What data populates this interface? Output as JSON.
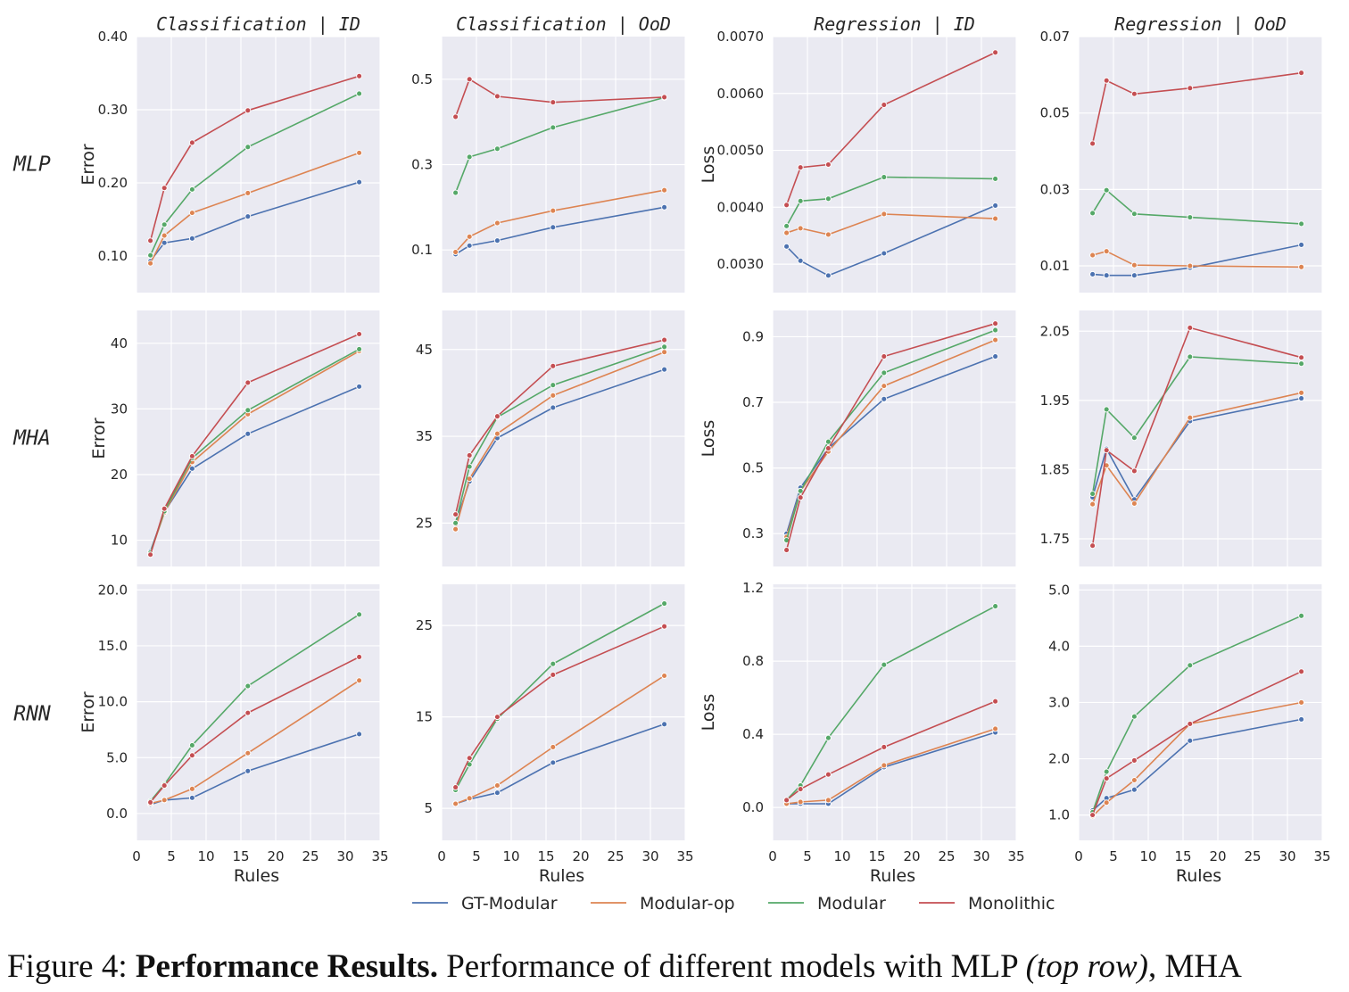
{
  "chart_data": {
    "type": "line",
    "x": [
      2,
      4,
      8,
      16,
      32
    ],
    "series_names": [
      "GT-Modular",
      "Modular-op",
      "Modular",
      "Monolithic"
    ],
    "colors": {
      "GT-Modular": "#4c72b0",
      "Modular-op": "#dd8452",
      "Modular": "#55a868",
      "Monolithic": "#c44e52"
    },
    "background": "#eaeaf2",
    "grid": true,
    "legend_position": "bottom-center",
    "col_titles": [
      "Classification | ID",
      "Classification | OoD",
      "Regression | ID",
      "Regression | OoD"
    ],
    "row_titles": [
      "MLP",
      "MHA",
      "RNN"
    ],
    "xlabel": "Rules",
    "xlim": [
      0,
      35
    ],
    "xticks": [
      "0",
      "5",
      "10",
      "15",
      "20",
      "25",
      "30",
      "35"
    ],
    "panels": [
      [
        {
          "ylabel": "Error",
          "ylim": [
            0.05,
            0.4
          ],
          "yticks": [
            [
              0.1,
              "0.10"
            ],
            [
              0.2,
              "0.20"
            ],
            [
              0.3,
              "0.30"
            ],
            [
              0.4,
              "0.40"
            ]
          ],
          "series": {
            "GT-Modular": [
              0.093,
              0.118,
              0.124,
              0.154,
              0.201
            ],
            "Modular-op": [
              0.09,
              0.128,
              0.159,
              0.186,
              0.241
            ],
            "Modular": [
              0.101,
              0.143,
              0.191,
              0.249,
              0.322
            ],
            "Monolithic": [
              0.121,
              0.193,
              0.255,
              0.299,
              0.346
            ]
          }
        },
        {
          "ylabel": "",
          "ylim": [
            0.0,
            0.6
          ],
          "yticks": [
            [
              0.1,
              "0.1"
            ],
            [
              0.3,
              "0.3"
            ],
            [
              0.5,
              "0.5"
            ]
          ],
          "series": {
            "GT-Modular": [
              0.09,
              0.11,
              0.122,
              0.153,
              0.2
            ],
            "Modular-op": [
              0.095,
              0.131,
              0.163,
              0.192,
              0.24
            ],
            "Modular": [
              0.234,
              0.318,
              0.337,
              0.387,
              0.457
            ],
            "Monolithic": [
              0.412,
              0.5,
              0.46,
              0.446,
              0.458
            ]
          }
        },
        {
          "ylabel": "Loss",
          "ylim": [
            0.0025,
            0.007
          ],
          "yticks": [
            [
              0.003,
              "0.0030"
            ],
            [
              0.004,
              "0.0040"
            ],
            [
              0.005,
              "0.0050"
            ],
            [
              0.006,
              "0.0060"
            ],
            [
              0.007,
              "0.0070"
            ]
          ],
          "series": {
            "GT-Modular": [
              0.00331,
              0.00306,
              0.0028,
              0.00319,
              0.00403
            ],
            "Modular-op": [
              0.00355,
              0.00363,
              0.00352,
              0.00388,
              0.0038
            ],
            "Modular": [
              0.00367,
              0.00411,
              0.00415,
              0.00453,
              0.0045
            ],
            "Monolithic": [
              0.00404,
              0.0047,
              0.00475,
              0.0058,
              0.00672
            ]
          }
        },
        {
          "ylabel": "",
          "ylim": [
            0.003,
            0.07
          ],
          "yticks": [
            [
              0.01,
              "0.01"
            ],
            [
              0.03,
              "0.03"
            ],
            [
              0.05,
              "0.05"
            ],
            [
              0.07,
              "0.07"
            ]
          ],
          "series": {
            "GT-Modular": [
              0.0078,
              0.0075,
              0.0075,
              0.0095,
              0.0155
            ],
            "Modular-op": [
              0.0128,
              0.0138,
              0.0102,
              0.01,
              0.0097
            ],
            "Modular": [
              0.0238,
              0.0298,
              0.0236,
              0.0227,
              0.021
            ],
            "Monolithic": [
              0.042,
              0.0585,
              0.055,
              0.0565,
              0.0605
            ]
          }
        }
      ],
      [
        {
          "ylabel": "Error",
          "ylim": [
            6.0,
            45.0
          ],
          "yticks": [
            [
              10,
              "10"
            ],
            [
              20,
              "20"
            ],
            [
              30,
              "30"
            ],
            [
              40,
              "40"
            ]
          ],
          "series": {
            "GT-Modular": [
              8.3,
              14.3,
              20.9,
              26.2,
              33.4
            ],
            "Modular-op": [
              8.0,
              14.2,
              21.9,
              29.2,
              38.8
            ],
            "Modular": [
              8.1,
              14.4,
              22.5,
              29.8,
              39.1
            ],
            "Monolithic": [
              7.8,
              14.8,
              22.8,
              34.0,
              41.4
            ]
          }
        },
        {
          "ylabel": "",
          "ylim": [
            20.0,
            49.5
          ],
          "yticks": [
            [
              25,
              "25"
            ],
            [
              35,
              "35"
            ],
            [
              45,
              "45"
            ]
          ],
          "series": {
            "GT-Modular": [
              25.0,
              29.8,
              34.8,
              38.3,
              42.7
            ],
            "Modular-op": [
              24.3,
              30.1,
              35.3,
              39.7,
              44.7
            ],
            "Modular": [
              25.0,
              31.5,
              37.2,
              40.9,
              45.3
            ],
            "Monolithic": [
              26.0,
              32.8,
              37.3,
              43.1,
              46.1
            ]
          }
        },
        {
          "ylabel": "Loss",
          "ylim": [
            0.2,
            0.98
          ],
          "yticks": [
            [
              0.3,
              "0.3"
            ],
            [
              0.5,
              "0.5"
            ],
            [
              0.7,
              "0.7"
            ],
            [
              0.9,
              "0.9"
            ]
          ],
          "series": {
            "GT-Modular": [
              0.3,
              0.44,
              0.56,
              0.71,
              0.84
            ],
            "Modular-op": [
              0.29,
              0.43,
              0.55,
              0.75,
              0.89
            ],
            "Modular": [
              0.28,
              0.43,
              0.58,
              0.79,
              0.92
            ],
            "Monolithic": [
              0.25,
              0.41,
              0.56,
              0.84,
              0.94
            ]
          }
        },
        {
          "ylabel": "",
          "ylim": [
            1.71,
            2.08
          ],
          "yticks": [
            [
              1.75,
              "1.75"
            ],
            [
              1.85,
              "1.85"
            ],
            [
              1.95,
              "1.95"
            ],
            [
              2.05,
              "2.05"
            ]
          ],
          "series": {
            "GT-Modular": [
              1.81,
              1.88,
              1.807,
              1.92,
              1.953
            ],
            "Modular-op": [
              1.8,
              1.856,
              1.801,
              1.925,
              1.961
            ],
            "Modular": [
              1.815,
              1.937,
              1.896,
              2.013,
              2.003
            ],
            "Monolithic": [
              1.74,
              1.878,
              1.848,
              2.055,
              2.012
            ]
          }
        }
      ],
      [
        {
          "ylabel": "Error",
          "ylim": [
            -2.4,
            20.5
          ],
          "yticks": [
            [
              0,
              "0.0"
            ],
            [
              5,
              "5.0"
            ],
            [
              10,
              "10.0"
            ],
            [
              15,
              "15.0"
            ],
            [
              20,
              "20.0"
            ]
          ],
          "series": {
            "GT-Modular": [
              0.8,
              1.2,
              1.4,
              3.8,
              7.1
            ],
            "Modular-op": [
              0.9,
              1.2,
              2.2,
              5.4,
              11.9
            ],
            "Modular": [
              1.1,
              2.6,
              6.1,
              11.4,
              17.8
            ],
            "Monolithic": [
              1.0,
              2.5,
              5.2,
              9.0,
              14.0
            ]
          }
        },
        {
          "ylabel": "",
          "ylim": [
            1.5,
            29.5
          ],
          "yticks": [
            [
              5,
              "5"
            ],
            [
              15,
              "15"
            ],
            [
              25,
              "25"
            ]
          ],
          "series": {
            "GT-Modular": [
              5.5,
              6.0,
              6.7,
              10.0,
              14.2
            ],
            "Modular-op": [
              5.5,
              6.1,
              7.5,
              11.7,
              19.5
            ],
            "Modular": [
              7.0,
              9.8,
              14.8,
              20.8,
              27.4
            ],
            "Monolithic": [
              7.3,
              10.5,
              15.0,
              19.6,
              24.9
            ]
          }
        },
        {
          "ylabel": "Loss",
          "ylim": [
            -0.18,
            1.22
          ],
          "yticks": [
            [
              0.0,
              "0.0"
            ],
            [
              0.4,
              "0.4"
            ],
            [
              0.8,
              "0.8"
            ],
            [
              1.2,
              "1.2"
            ]
          ],
          "series": {
            "GT-Modular": [
              0.02,
              0.02,
              0.02,
              0.22,
              0.41
            ],
            "Modular-op": [
              0.02,
              0.03,
              0.04,
              0.23,
              0.43
            ],
            "Modular": [
              0.04,
              0.12,
              0.38,
              0.78,
              1.1
            ],
            "Monolithic": [
              0.04,
              0.1,
              0.18,
              0.33,
              0.58
            ]
          }
        },
        {
          "ylabel": "",
          "ylim": [
            0.55,
            5.1
          ],
          "yticks": [
            [
              1,
              "1.0"
            ],
            [
              2,
              "2.0"
            ],
            [
              3,
              "3.0"
            ],
            [
              4,
              "4.0"
            ],
            [
              5,
              "5.0"
            ]
          ],
          "series": {
            "GT-Modular": [
              1.08,
              1.3,
              1.45,
              2.32,
              2.7
            ],
            "Modular-op": [
              0.98,
              1.22,
              1.62,
              2.62,
              3.0
            ],
            "Modular": [
              1.05,
              1.77,
              2.75,
              3.66,
              4.54
            ],
            "Monolithic": [
              1.0,
              1.65,
              1.97,
              2.62,
              3.55
            ]
          }
        }
      ]
    ]
  },
  "caption": {
    "prefix": "Figure 4: ",
    "bold": "Performance Results.",
    "text": " Performance of different models with MLP ",
    "italic": "(top row)",
    "suffix": ", MHA"
  }
}
